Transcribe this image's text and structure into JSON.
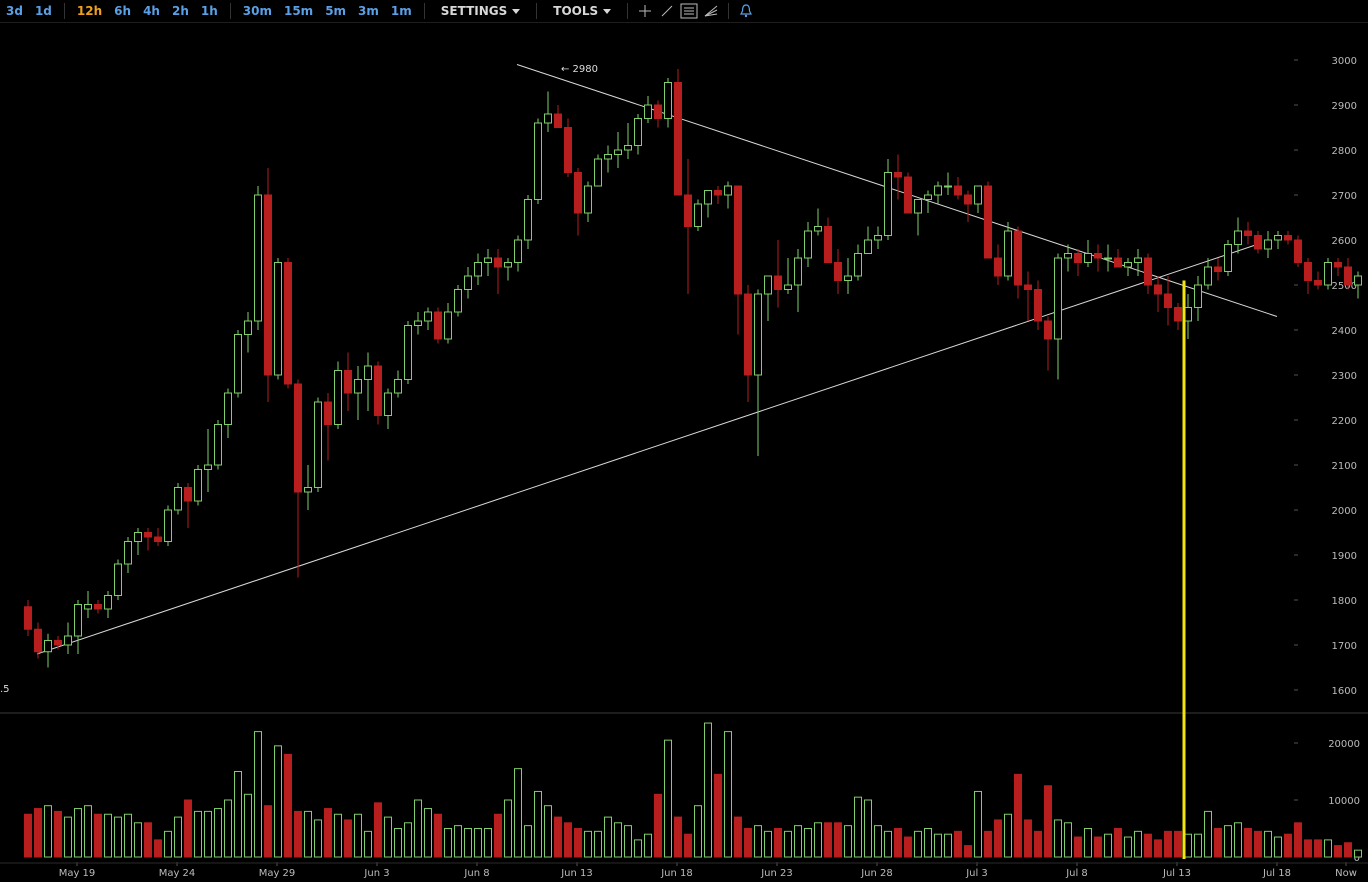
{
  "toolbar": {
    "ranges": [
      "3d",
      "1d"
    ],
    "intervals": [
      {
        "label": "12h",
        "active": true
      },
      {
        "label": "6h"
      },
      {
        "label": "4h"
      },
      {
        "label": "2h"
      },
      {
        "label": "1h"
      }
    ],
    "minute_intervals": [
      "30m",
      "15m",
      "5m",
      "3m",
      "1m"
    ],
    "settings_label": "SETTINGS",
    "tools_label": "TOOLS",
    "tool_icons": [
      "crosshair-icon",
      "line-draw-icon",
      "horizontal-lines-icon",
      "fan-icon",
      "alert-bell-icon"
    ]
  },
  "colors": {
    "up": "#7fcf6a",
    "down": "#b81e1e",
    "trendline": "#d8d8d8",
    "marker": "#f5e60a",
    "grid_text": "#bbbbbb"
  },
  "annotations": {
    "high_label": "← 2980",
    "low_label_fragment": ".5"
  },
  "chart_data": [
    {
      "type": "candlestick",
      "title": "",
      "x_ticks": [
        "May 19",
        "May 24",
        "May 29",
        "Jun 3",
        "Jun 8",
        "Jun 13",
        "Jun 18",
        "Jun 23",
        "Jun 28",
        "Jul 3",
        "Jul 8",
        "Jul 13",
        "Jul 18",
        "Now"
      ],
      "y_ticks": [
        1600,
        1700,
        1800,
        1900,
        2000,
        2100,
        2200,
        2300,
        2400,
        2500,
        2600,
        2700,
        2800,
        2900,
        3000
      ],
      "ylim": [
        1550,
        3050
      ],
      "interval": "12h",
      "candles": [
        [
          1785,
          1800,
          1720,
          1735
        ],
        [
          1735,
          1750,
          1670,
          1685
        ],
        [
          1685,
          1725,
          1650,
          1710
        ],
        [
          1710,
          1720,
          1690,
          1700
        ],
        [
          1700,
          1750,
          1680,
          1720
        ],
        [
          1720,
          1800,
          1680,
          1790
        ],
        [
          1780,
          1820,
          1760,
          1790
        ],
        [
          1790,
          1800,
          1770,
          1780
        ],
        [
          1780,
          1820,
          1760,
          1810
        ],
        [
          1810,
          1890,
          1800,
          1880
        ],
        [
          1880,
          1940,
          1860,
          1930
        ],
        [
          1930,
          1960,
          1900,
          1950
        ],
        [
          1950,
          1960,
          1910,
          1940
        ],
        [
          1940,
          1960,
          1920,
          1930
        ],
        [
          1930,
          2010,
          1920,
          2000
        ],
        [
          2000,
          2060,
          1990,
          2050
        ],
        [
          2050,
          2060,
          1960,
          2020
        ],
        [
          2020,
          2100,
          2010,
          2090
        ],
        [
          2090,
          2180,
          2040,
          2100
        ],
        [
          2100,
          2200,
          2090,
          2190
        ],
        [
          2190,
          2270,
          2160,
          2260
        ],
        [
          2260,
          2400,
          2250,
          2390
        ],
        [
          2390,
          2440,
          2350,
          2420
        ],
        [
          2420,
          2720,
          2400,
          2700
        ],
        [
          2700,
          2760,
          2240,
          2300
        ],
        [
          2300,
          2560,
          2290,
          2550
        ],
        [
          2550,
          2560,
          2270,
          2280
        ],
        [
          2280,
          2290,
          1850,
          2040
        ],
        [
          2040,
          2100,
          2000,
          2050
        ],
        [
          2050,
          2250,
          2040,
          2240
        ],
        [
          2240,
          2260,
          2110,
          2190
        ],
        [
          2190,
          2330,
          2180,
          2310
        ],
        [
          2310,
          2350,
          2220,
          2260
        ],
        [
          2260,
          2320,
          2200,
          2290
        ],
        [
          2290,
          2350,
          2220,
          2320
        ],
        [
          2320,
          2330,
          2190,
          2210
        ],
        [
          2210,
          2270,
          2180,
          2260
        ],
        [
          2260,
          2310,
          2250,
          2290
        ],
        [
          2290,
          2420,
          2280,
          2410
        ],
        [
          2410,
          2440,
          2390,
          2420
        ],
        [
          2420,
          2450,
          2400,
          2440
        ],
        [
          2440,
          2450,
          2370,
          2380
        ],
        [
          2380,
          2460,
          2370,
          2440
        ],
        [
          2440,
          2500,
          2430,
          2490
        ],
        [
          2490,
          2540,
          2470,
          2520
        ],
        [
          2520,
          2570,
          2500,
          2550
        ],
        [
          2550,
          2580,
          2520,
          2560
        ],
        [
          2560,
          2580,
          2480,
          2540
        ],
        [
          2540,
          2560,
          2510,
          2550
        ],
        [
          2550,
          2610,
          2530,
          2600
        ],
        [
          2600,
          2700,
          2580,
          2690
        ],
        [
          2690,
          2870,
          2680,
          2860
        ],
        [
          2860,
          2930,
          2840,
          2880
        ],
        [
          2880,
          2900,
          2860,
          2850
        ],
        [
          2850,
          2870,
          2740,
          2750
        ],
        [
          2750,
          2760,
          2610,
          2660
        ],
        [
          2660,
          2730,
          2640,
          2720
        ],
        [
          2720,
          2790,
          2720,
          2780
        ],
        [
          2780,
          2810,
          2750,
          2790
        ],
        [
          2790,
          2840,
          2760,
          2800
        ],
        [
          2800,
          2860,
          2780,
          2810
        ],
        [
          2810,
          2880,
          2790,
          2870
        ],
        [
          2870,
          2920,
          2860,
          2900
        ],
        [
          2900,
          2910,
          2850,
          2870
        ],
        [
          2870,
          2960,
          2850,
          2950
        ],
        [
          2950,
          2980,
          2700,
          2700
        ],
        [
          2700,
          2780,
          2480,
          2630
        ],
        [
          2630,
          2690,
          2620,
          2680
        ],
        [
          2680,
          2710,
          2650,
          2710
        ],
        [
          2710,
          2720,
          2680,
          2700
        ],
        [
          2700,
          2730,
          2670,
          2720
        ],
        [
          2720,
          2720,
          2390,
          2480
        ],
        [
          2480,
          2500,
          2240,
          2300
        ],
        [
          2300,
          2490,
          2120,
          2480
        ],
        [
          2480,
          2510,
          2420,
          2520
        ],
        [
          2520,
          2600,
          2450,
          2490
        ],
        [
          2490,
          2560,
          2480,
          2500
        ],
        [
          2500,
          2580,
          2440,
          2560
        ],
        [
          2560,
          2640,
          2540,
          2620
        ],
        [
          2620,
          2670,
          2610,
          2630
        ],
        [
          2630,
          2650,
          2560,
          2550
        ],
        [
          2550,
          2580,
          2480,
          2510
        ],
        [
          2510,
          2560,
          2480,
          2520
        ],
        [
          2520,
          2590,
          2510,
          2570
        ],
        [
          2570,
          2630,
          2570,
          2600
        ],
        [
          2600,
          2630,
          2580,
          2610
        ],
        [
          2610,
          2780,
          2600,
          2750
        ],
        [
          2750,
          2790,
          2690,
          2740
        ],
        [
          2740,
          2750,
          2660,
          2660
        ],
        [
          2660,
          2690,
          2610,
          2690
        ],
        [
          2690,
          2710,
          2660,
          2700
        ],
        [
          2700,
          2730,
          2680,
          2720
        ],
        [
          2720,
          2750,
          2700,
          2720
        ],
        [
          2720,
          2740,
          2690,
          2700
        ],
        [
          2700,
          2710,
          2640,
          2680
        ],
        [
          2680,
          2720,
          2660,
          2720
        ],
        [
          2720,
          2730,
          2560,
          2560
        ],
        [
          2560,
          2590,
          2500,
          2520
        ],
        [
          2520,
          2640,
          2510,
          2620
        ],
        [
          2620,
          2630,
          2470,
          2500
        ],
        [
          2500,
          2530,
          2420,
          2490
        ],
        [
          2490,
          2510,
          2400,
          2420
        ],
        [
          2420,
          2430,
          2310,
          2380
        ],
        [
          2380,
          2570,
          2290,
          2560
        ],
        [
          2560,
          2590,
          2530,
          2570
        ],
        [
          2570,
          2580,
          2520,
          2550
        ],
        [
          2550,
          2600,
          2540,
          2570
        ],
        [
          2570,
          2590,
          2530,
          2560
        ],
        [
          2560,
          2590,
          2530,
          2560
        ],
        [
          2560,
          2580,
          2550,
          2540
        ],
        [
          2540,
          2560,
          2520,
          2550
        ],
        [
          2550,
          2580,
          2520,
          2560
        ],
        [
          2560,
          2570,
          2480,
          2500
        ],
        [
          2500,
          2520,
          2440,
          2480
        ],
        [
          2480,
          2520,
          2410,
          2450
        ],
        [
          2450,
          2460,
          2400,
          2420
        ],
        [
          2420,
          2480,
          2380,
          2450
        ],
        [
          2450,
          2520,
          2420,
          2500
        ],
        [
          2500,
          2560,
          2490,
          2540
        ],
        [
          2540,
          2560,
          2510,
          2530
        ],
        [
          2530,
          2600,
          2520,
          2590
        ],
        [
          2590,
          2650,
          2570,
          2620
        ],
        [
          2620,
          2640,
          2590,
          2610
        ],
        [
          2610,
          2620,
          2570,
          2580
        ],
        [
          2580,
          2620,
          2560,
          2600
        ],
        [
          2600,
          2620,
          2580,
          2610
        ],
        [
          2610,
          2620,
          2590,
          2600
        ],
        [
          2600,
          2610,
          2540,
          2550
        ],
        [
          2550,
          2560,
          2480,
          2510
        ],
        [
          2510,
          2530,
          2490,
          2500
        ],
        [
          2500,
          2560,
          2490,
          2550
        ],
        [
          2550,
          2560,
          2520,
          2540
        ],
        [
          2540,
          2560,
          2490,
          2500
        ],
        [
          2500,
          2530,
          2470,
          2520
        ]
      ]
    },
    {
      "type": "bar",
      "title": "",
      "series_name": "",
      "y_ticks": [
        0,
        10000,
        20000
      ],
      "ylim": [
        0,
        24000
      ],
      "values": [
        7500,
        8500,
        9000,
        8000,
        7000,
        8500,
        9000,
        7500,
        7500,
        7000,
        7500,
        6000,
        6000,
        3000,
        4500,
        7000,
        10000,
        8000,
        8000,
        8500,
        10000,
        15000,
        11000,
        22000,
        9000,
        19500,
        18000,
        8000,
        8000,
        6500,
        8500,
        7500,
        6500,
        7500,
        4500,
        9500,
        7000,
        5000,
        6000,
        10000,
        8500,
        7500,
        5000,
        5500,
        5000,
        5000,
        5000,
        7500,
        10000,
        15500,
        5500,
        11500,
        9000,
        7000,
        6000,
        5000,
        4500,
        4500,
        7000,
        6000,
        5500,
        3000,
        4000,
        11000,
        20500,
        7000,
        4000,
        9000,
        23500,
        14500,
        22000,
        7000,
        5000,
        5500,
        4500,
        5000,
        4500,
        5500,
        5000,
        6000,
        6000,
        6000,
        5500,
        10500,
        10000,
        5500,
        4500,
        5000,
        3500,
        4500,
        5000,
        4000,
        4000,
        4500,
        2000,
        11500,
        4500,
        6500,
        7500,
        14500,
        6500,
        4500,
        12500,
        6500,
        6000,
        3500,
        5000,
        3500,
        4000,
        5000,
        3500,
        4500,
        4000,
        3000,
        4500,
        4500,
        4000,
        4000,
        8000,
        5000,
        5500,
        6000,
        5000,
        4500,
        4500,
        3500,
        4000,
        6000,
        3000,
        3000,
        3000,
        2000,
        2500,
        1200
      ]
    }
  ],
  "trendlines": [
    {
      "from": [
        "May 17",
        1680
      ],
      "to": [
        "Jul 17",
        2590
      ]
    },
    {
      "from": [
        "Jun 10",
        2990
      ],
      "to": [
        "Jul 18",
        2430
      ]
    }
  ],
  "projection_marker": {
    "date": "Jul 13",
    "value": 2510
  }
}
